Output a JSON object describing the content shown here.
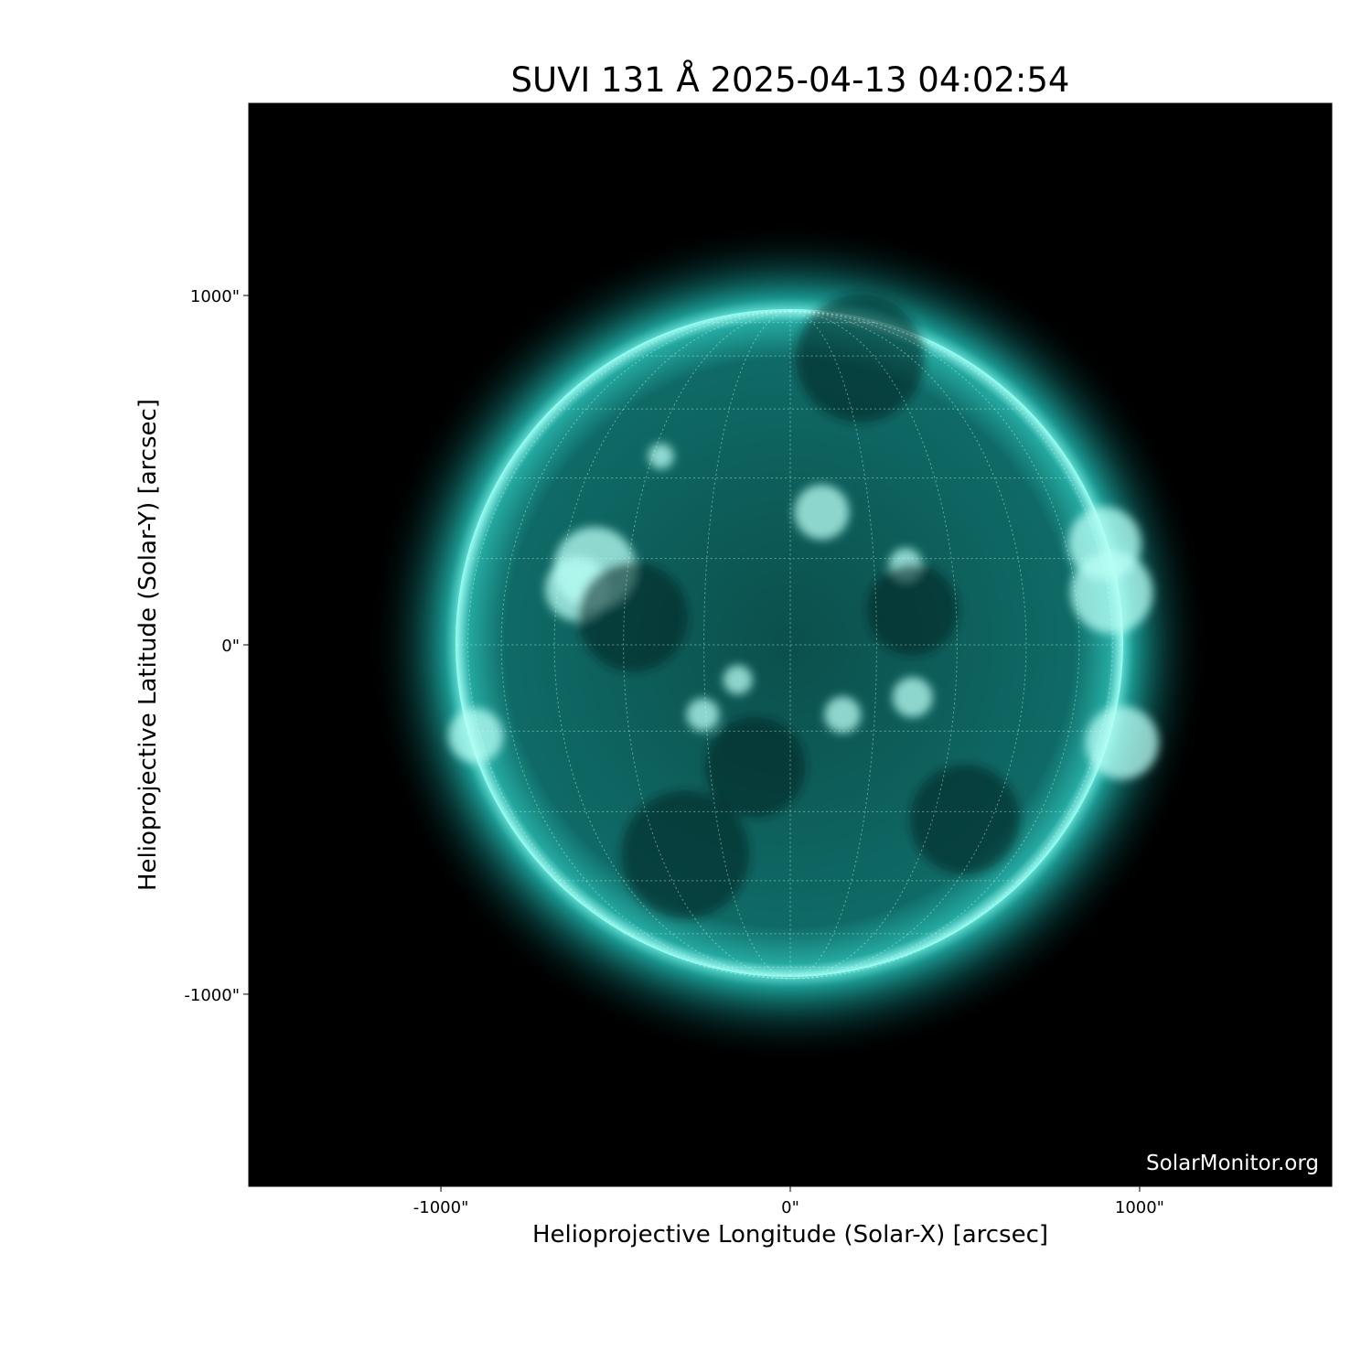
{
  "chart_data": {
    "type": "image",
    "title": "SUVI 131 Å 2025-04-13 04:02:54",
    "xlabel": "Helioprojective Longitude (Solar-X) [arcsec]",
    "ylabel": "Helioprojective Latitude (Solar-Y) [arcsec]",
    "xlim": [
      -1550,
      1550
    ],
    "ylim": [
      -1550,
      1550
    ],
    "x_ticks": [
      {
        "value": -1000,
        "label": "-1000\""
      },
      {
        "value": 0,
        "label": "0\""
      },
      {
        "value": 1000,
        "label": "1000\""
      }
    ],
    "y_ticks": [
      {
        "value": 1000,
        "label": "1000\""
      },
      {
        "value": 0,
        "label": "0\""
      },
      {
        "value": -1000,
        "label": "-1000\""
      }
    ],
    "solar_radius_arcsec": 955,
    "grid_spacing_deg": 15,
    "colormap": "teal (SUVI 131)",
    "background_color": "#000000",
    "disk_color": "#0f6e6a",
    "limb_color": "#66fff0",
    "watermark": "SolarMonitor.org"
  }
}
